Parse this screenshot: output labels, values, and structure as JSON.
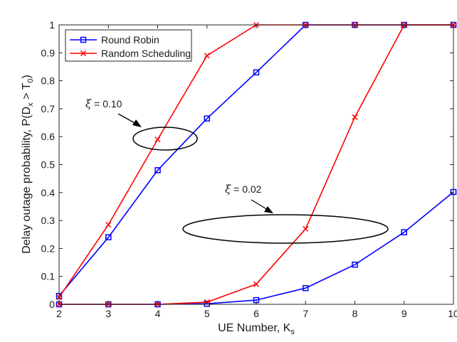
{
  "chart_data": {
    "type": "line",
    "x": [
      2,
      3,
      4,
      5,
      6,
      7,
      8,
      9,
      10
    ],
    "xlabel": {
      "main": "UE Number, K",
      "sub": "s"
    },
    "ylabel": {
      "p1": "Delay outage probability, P(D",
      "sub1": "x",
      "p2": " > T",
      "sub2": "0",
      "p3": ")"
    },
    "xlim": [
      2,
      10
    ],
    "ylim": [
      0,
      1
    ],
    "xticks": [
      "2",
      "3",
      "4",
      "5",
      "6",
      "7",
      "8",
      "9",
      "10"
    ],
    "yticks": [
      "0",
      "0.1",
      "0.2",
      "0.3",
      "0.4",
      "0.5",
      "0.6",
      "0.7",
      "0.8",
      "0.9",
      "1"
    ],
    "grid": false,
    "legend_position": "top-left",
    "series": [
      {
        "name": "Round Robin",
        "color": "#0000ff",
        "marker": "square",
        "group": "xi=0.10",
        "values": [
          0.03,
          0.24,
          0.48,
          0.665,
          0.83,
          1.0,
          1.0,
          1.0,
          1.0
        ]
      },
      {
        "name": "Random Scheduling",
        "color": "#ff0000",
        "marker": "x",
        "group": "xi=0.10",
        "values": [
          0.025,
          0.285,
          0.59,
          0.89,
          1.0,
          1.0,
          1.0,
          1.0,
          1.0
        ]
      },
      {
        "name": "Round Robin",
        "color": "#0000ff",
        "marker": "square",
        "group": "xi=0.02",
        "values": [
          0.0,
          0.0,
          0.0,
          0.002,
          0.015,
          0.058,
          0.142,
          0.258,
          0.402
        ]
      },
      {
        "name": "Random Scheduling",
        "color": "#ff0000",
        "marker": "x",
        "group": "xi=0.02",
        "values": [
          0.0,
          0.0,
          0.0,
          0.008,
          0.072,
          0.27,
          0.67,
          1.0,
          1.0
        ]
      }
    ],
    "legend": [
      "Round Robin",
      "Random Scheduling"
    ],
    "annotations": [
      {
        "symbol": "ξ",
        "text": " = 0.10"
      },
      {
        "symbol": "ξ",
        "text": " = 0.02"
      }
    ]
  }
}
